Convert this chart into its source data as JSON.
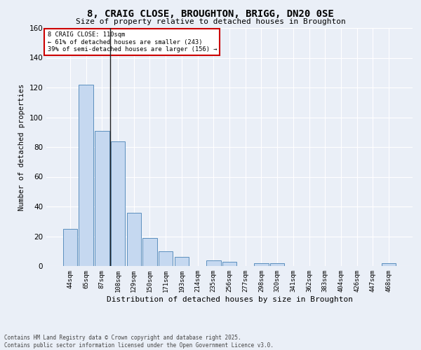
{
  "title_line1": "8, CRAIG CLOSE, BROUGHTON, BRIGG, DN20 0SE",
  "title_line2": "Size of property relative to detached houses in Broughton",
  "xlabel": "Distribution of detached houses by size in Broughton",
  "ylabel": "Number of detached properties",
  "categories": [
    "44sqm",
    "65sqm",
    "87sqm",
    "108sqm",
    "129sqm",
    "150sqm",
    "171sqm",
    "193sqm",
    "214sqm",
    "235sqm",
    "256sqm",
    "277sqm",
    "298sqm",
    "320sqm",
    "341sqm",
    "362sqm",
    "383sqm",
    "404sqm",
    "426sqm",
    "447sqm",
    "468sqm"
  ],
  "values": [
    25,
    122,
    91,
    84,
    36,
    19,
    10,
    6,
    0,
    4,
    3,
    0,
    2,
    2,
    0,
    0,
    0,
    0,
    0,
    0,
    2
  ],
  "bar_color": "#c5d8f0",
  "bar_edge_color": "#5b8fbe",
  "highlight_bar_index": 3,
  "highlight_line_color": "#222222",
  "ylim": [
    0,
    160
  ],
  "yticks": [
    0,
    20,
    40,
    60,
    80,
    100,
    120,
    140,
    160
  ],
  "annotation_title": "8 CRAIG CLOSE: 110sqm",
  "annotation_line2": "← 61% of detached houses are smaller (243)",
  "annotation_line3": "39% of semi-detached houses are larger (156) →",
  "annotation_box_color": "#ffffff",
  "annotation_box_edge": "#cc0000",
  "bg_color": "#eaeff7",
  "plot_bg_color": "#eaeff7",
  "grid_color": "#ffffff",
  "footer_line1": "Contains HM Land Registry data © Crown copyright and database right 2025.",
  "footer_line2": "Contains public sector information licensed under the Open Government Licence v3.0."
}
